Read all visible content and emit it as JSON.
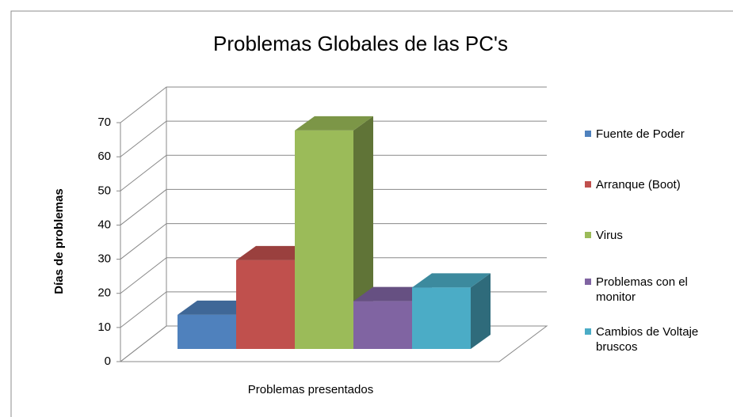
{
  "chart_data": {
    "type": "bar3d",
    "title": "Problemas Globales  de las PC's",
    "x_label": "Problemas presentados",
    "y_label": "Días de problemas",
    "categories": [
      null
    ],
    "series": [
      {
        "name": "Fuente de Poder",
        "color": "#4f81bd",
        "values": [
          10
        ]
      },
      {
        "name": "Arranque (Boot)",
        "color": "#c0504d",
        "values": [
          26
        ]
      },
      {
        "name": "Virus",
        "color": "#9bbb59",
        "values": [
          64
        ]
      },
      {
        "name": "Problemas con el monitor",
        "color": "#8064a2",
        "values": [
          14
        ]
      },
      {
        "name": "Cambios de Voltaje bruscos",
        "color": "#4bacc6",
        "values": [
          18
        ]
      }
    ],
    "ylim": [
      0,
      70
    ],
    "yticks": [
      0,
      10,
      20,
      30,
      40,
      50,
      60,
      70
    ],
    "grid": true,
    "legend": "right"
  }
}
